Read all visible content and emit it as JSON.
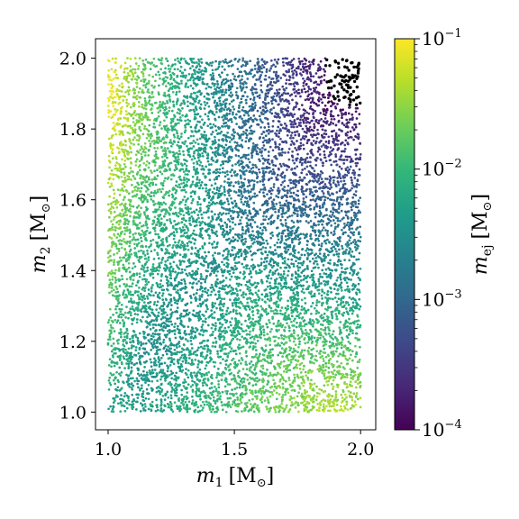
{
  "chart_data": {
    "type": "scatter",
    "xlabel_var": "m",
    "xlabel_sub": "1",
    "xlabel_unit": "[M",
    "xlabel_unit_sub": "⊙",
    "xlabel_unit_close": "]",
    "ylabel_var": "m",
    "ylabel_sub": "2",
    "ylabel_unit": "[M",
    "ylabel_unit_sub": "⊙",
    "ylabel_unit_close": "]",
    "xlim": [
      0.95,
      2.06
    ],
    "ylim": [
      0.95,
      2.055
    ],
    "x_ticks": [
      1.0,
      1.5,
      2.0
    ],
    "x_tick_labels": [
      "1.0",
      "1.5",
      "2.0"
    ],
    "y_ticks": [
      1.0,
      1.2,
      1.4,
      1.6,
      1.8,
      2.0
    ],
    "y_tick_labels": [
      "1.0",
      "1.2",
      "1.4",
      "1.6",
      "1.8",
      "2.0"
    ],
    "grid": false,
    "sample_region": {
      "x": [
        1.0,
        2.0
      ],
      "y": [
        1.0,
        2.0
      ]
    },
    "color_scale": "log",
    "colormap": "viridis",
    "colorbar": {
      "label_var": "m",
      "label_sub": "ej",
      "label_unit": "[M",
      "label_unit_sub": "⊙",
      "label_unit_close": "]",
      "range": [
        0.0001,
        0.1
      ],
      "ticks": [
        {
          "value": 0.1,
          "base": "10",
          "exp": "−1"
        },
        {
          "value": 0.01,
          "base": "10",
          "exp": "−2"
        },
        {
          "value": 0.001,
          "base": "10",
          "exp": "−3"
        },
        {
          "value": 0.0001,
          "base": "10",
          "exp": "−4"
        }
      ]
    },
    "series": [
      {
        "mark": "black-dots",
        "region": "upper-right corner, m1 ≳ 1.86 and m2 ≳ 1.86",
        "color": "#000000"
      }
    ],
    "trend": {
      "low_mass_ratio_corners_value": 0.05,
      "equal_mass_center_value": 0.003,
      "high_mass_corner_value": 0.0003,
      "left_edge_value": 0.02
    }
  },
  "colors": {
    "viridis": [
      "#440154",
      "#482878",
      "#3e4989",
      "#31688e",
      "#26828e",
      "#1f9e89",
      "#35b779",
      "#6ece58",
      "#b5de2b",
      "#fde725"
    ],
    "black_points": "#000000",
    "frame": "#000000"
  }
}
